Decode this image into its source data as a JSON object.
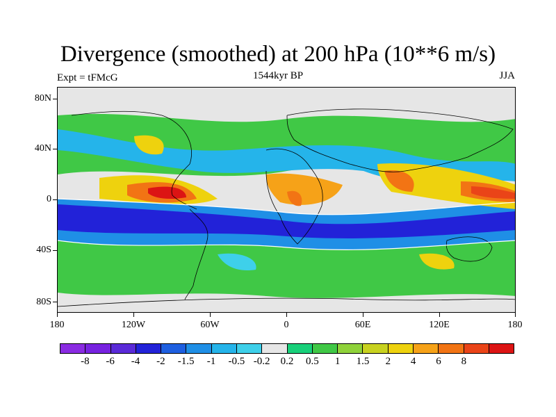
{
  "title": "Divergence (smoothed) at 200 hPa (10**6 m/s)",
  "left_label": "Expt = tFMcG",
  "center_label": "1544kyr BP",
  "right_label": "JJA",
  "y_ticks": [
    "80N",
    "40N",
    "0",
    "40S",
    "80S"
  ],
  "x_ticks": [
    "180",
    "120W",
    "60W",
    "0",
    "60E",
    "120E",
    "180"
  ],
  "colorbar": {
    "colors": [
      "#8a2be2",
      "#7722e0",
      "#5a2ad8",
      "#2222d8",
      "#1e5fe0",
      "#1f8fe6",
      "#25b4ea",
      "#3ed0ea",
      "#e6e6e6",
      "#18d07a",
      "#40c846",
      "#8fd23a",
      "#c8d220",
      "#eed20e",
      "#f6a218",
      "#f27414",
      "#ea4418",
      "#dc1414"
    ],
    "labels": [
      "-8",
      "-6",
      "-4",
      "-2",
      "-1.5",
      "-1",
      "-0.5",
      "-0.2",
      "0.2",
      "0.5",
      "1",
      "1.5",
      "2",
      "4",
      "6",
      "8"
    ]
  }
}
